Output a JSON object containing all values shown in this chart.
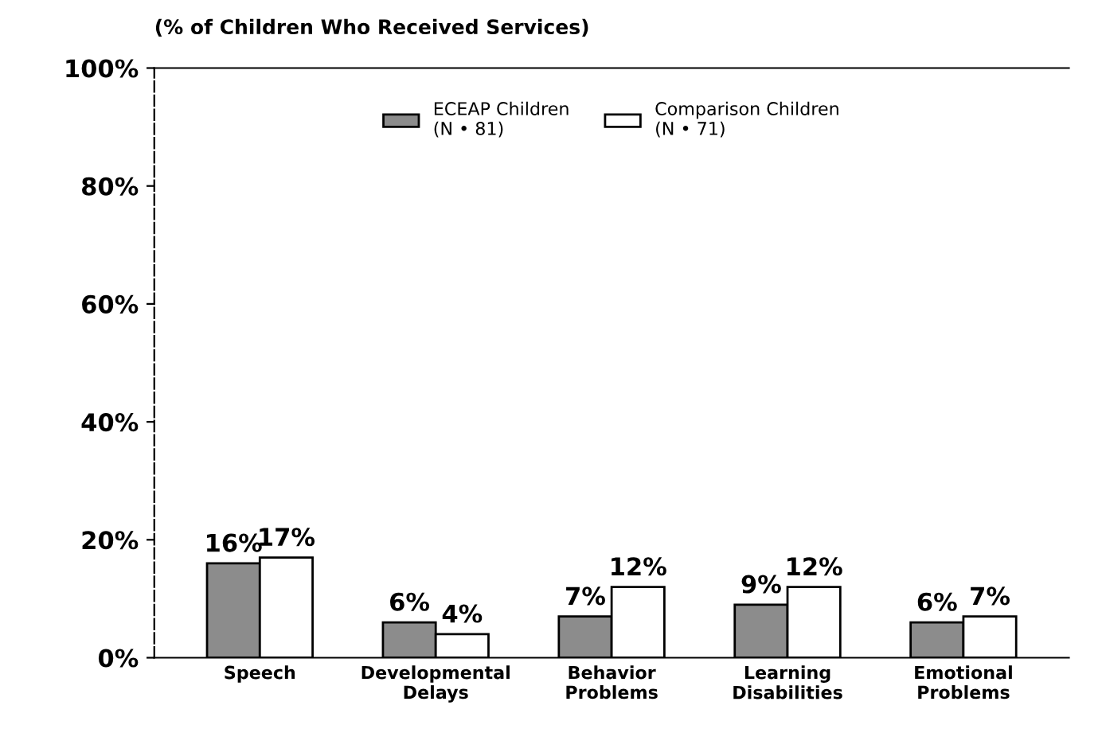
{
  "chart_data": {
    "type": "bar",
    "title": "(% of Children Who Received Services)",
    "categories": [
      "Speech",
      "Developmental\nDelays",
      "Behavior\nProblems",
      "Learning\nDisabilities",
      "Emotional\nProblems"
    ],
    "series": [
      {
        "name": "ECEAP Children\n(N • 81)",
        "color": "#8c8c8c",
        "values": [
          16,
          6,
          7,
          9,
          6
        ],
        "value_labels": [
          "16%",
          "6%",
          "7%",
          "9%",
          "6%"
        ]
      },
      {
        "name": "Comparison Children\n(N • 71)",
        "color": "#ffffff",
        "values": [
          17,
          4,
          12,
          12,
          7
        ],
        "value_labels": [
          "17%",
          "4%",
          "12%",
          "12%",
          "7%"
        ]
      }
    ],
    "ylim": [
      0,
      100
    ],
    "yticks": [
      {
        "value": 0,
        "label": "0%"
      },
      {
        "value": 20,
        "label": "20%"
      },
      {
        "value": 40,
        "label": "40%"
      },
      {
        "value": 60,
        "label": "60%"
      },
      {
        "value": 80,
        "label": "80%"
      },
      {
        "value": 100,
        "label": "100%"
      }
    ],
    "grid": false,
    "legend": "top"
  }
}
